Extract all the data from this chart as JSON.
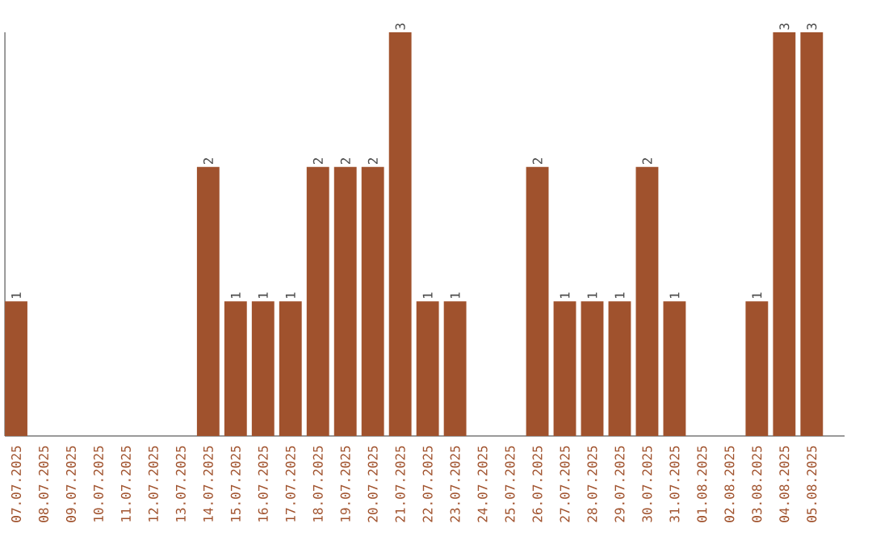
{
  "chart_data": {
    "type": "bar",
    "categories": [
      "07.07.2025",
      "08.07.2025",
      "09.07.2025",
      "10.07.2025",
      "11.07.2025",
      "12.07.2025",
      "13.07.2025",
      "14.07.2025",
      "15.07.2025",
      "16.07.2025",
      "17.07.2025",
      "18.07.2025",
      "19.07.2025",
      "20.07.2025",
      "21.07.2025",
      "22.07.2025",
      "23.07.2025",
      "24.07.2025",
      "25.07.2025",
      "26.07.2025",
      "27.07.2025",
      "28.07.2025",
      "29.07.2025",
      "30.07.2025",
      "31.07.2025",
      "01.08.2025",
      "02.08.2025",
      "03.08.2025",
      "04.08.2025",
      "05.08.2025"
    ],
    "values": [
      1,
      0,
      0,
      0,
      0,
      0,
      0,
      2,
      1,
      1,
      1,
      2,
      2,
      2,
      3,
      1,
      1,
      0,
      0,
      2,
      1,
      1,
      1,
      2,
      1,
      0,
      0,
      1,
      3,
      3
    ],
    "value_labels": [
      "1",
      null,
      null,
      null,
      null,
      null,
      null,
      "2",
      "1",
      "1",
      "1",
      "2",
      "2",
      "2",
      "3",
      "1",
      "1",
      null,
      null,
      "2",
      "1",
      "1",
      "1",
      "2",
      "1",
      null,
      null,
      "1",
      "3",
      "3"
    ],
    "color": "#a0522d",
    "ylim": [
      0,
      3
    ],
    "tick_labels": "x"
  }
}
